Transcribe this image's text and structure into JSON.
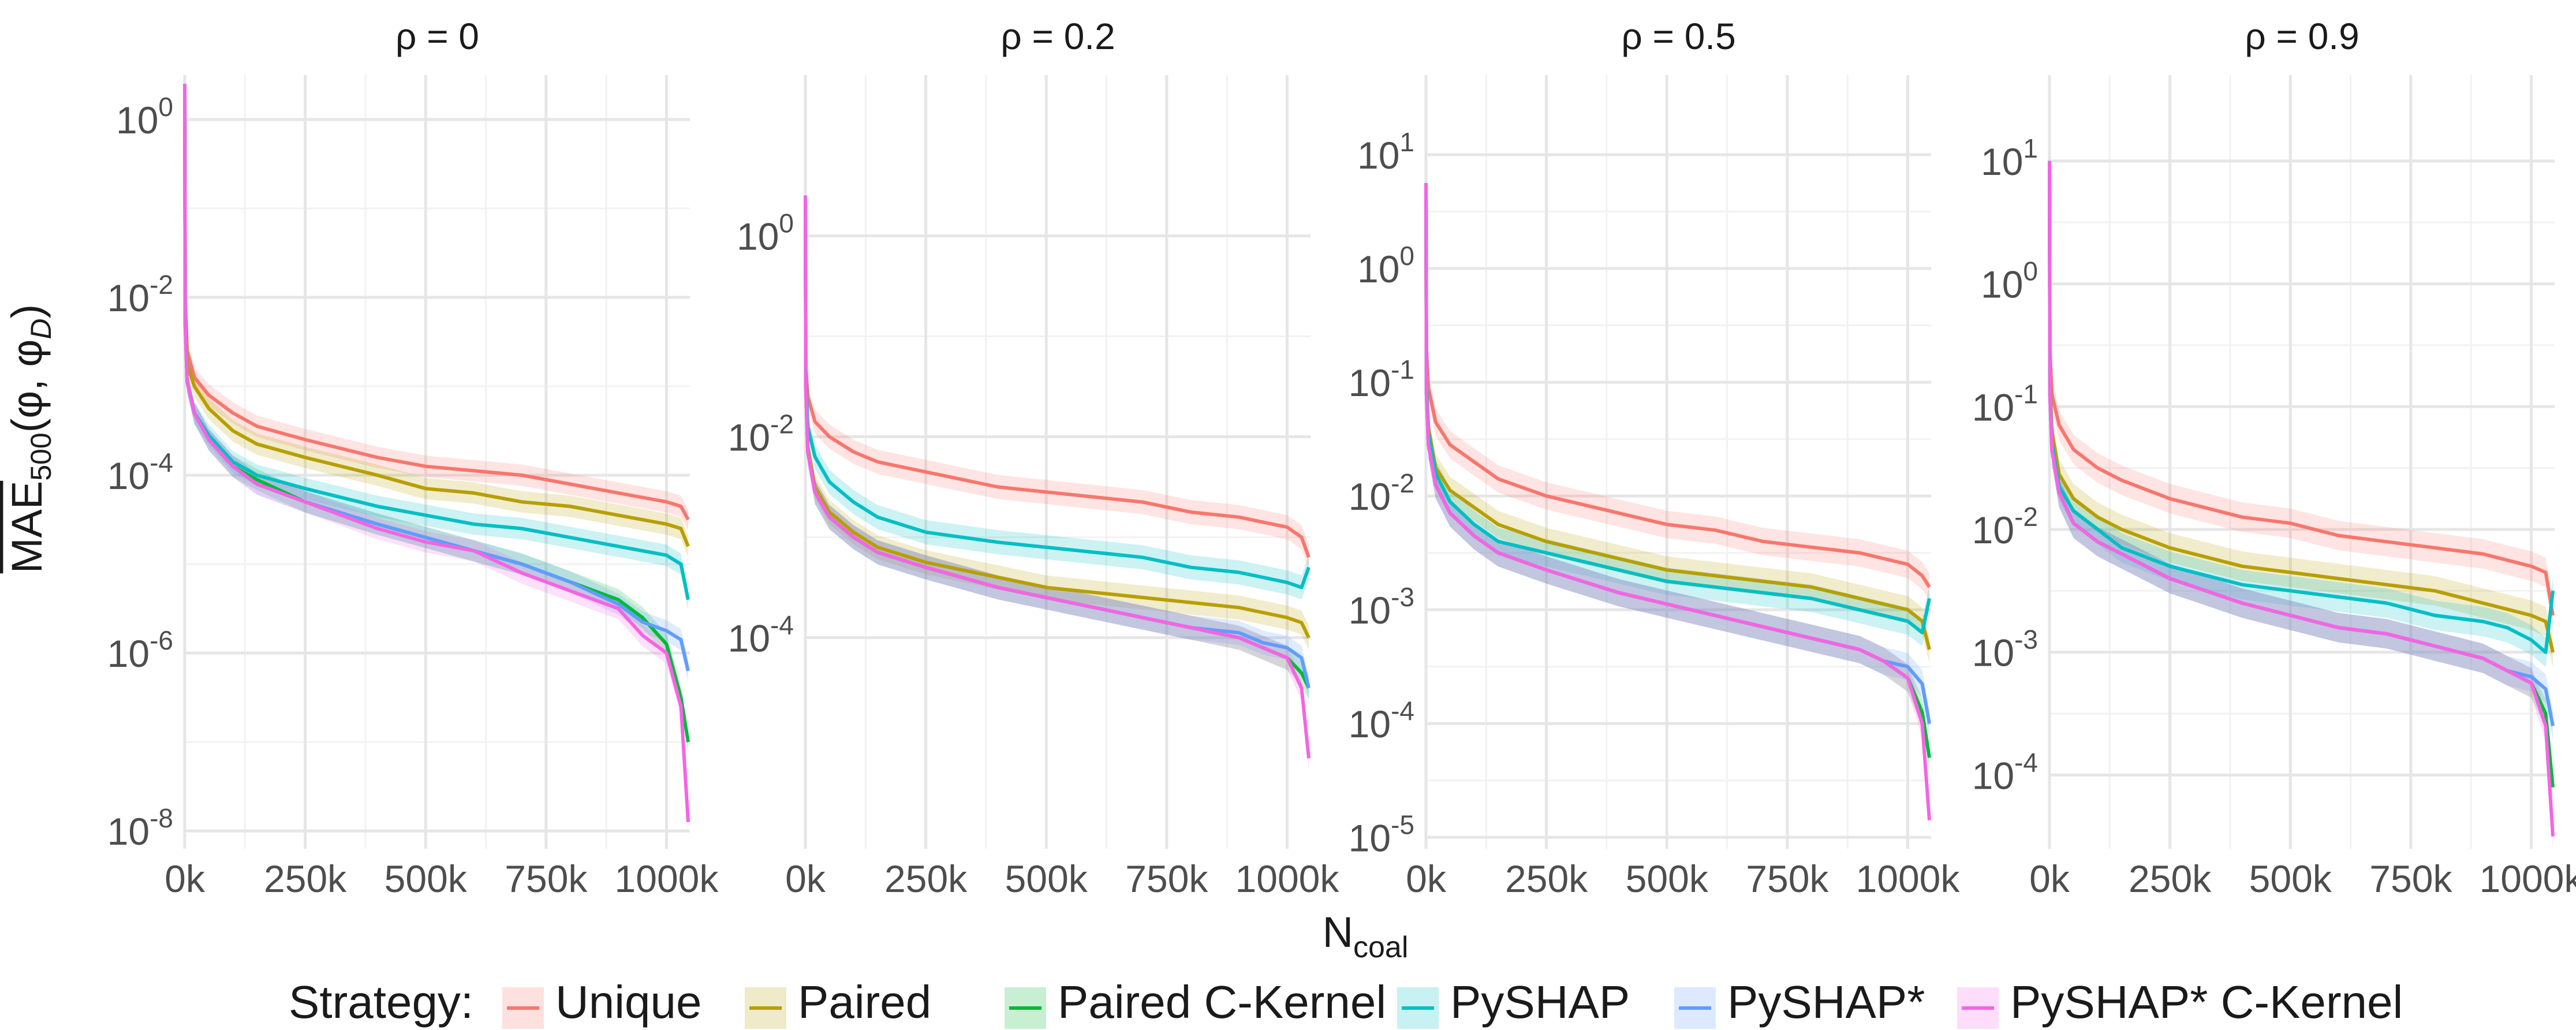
{
  "chart_data": {
    "type": "line",
    "title": "",
    "xlabel": "N",
    "xlabel_sub": "coal",
    "ylabel_parts": {
      "main": "MAE",
      "sub": "500",
      "args": "(φ, φ",
      "args_sub": "D",
      "close": ")"
    },
    "x_ticks": [
      0,
      250000,
      500000,
      750000,
      1000000
    ],
    "x_tick_labels": [
      "0k",
      "250k",
      "500k",
      "750k",
      "1000k"
    ],
    "xlim": [
      0,
      1048576
    ],
    "legend": {
      "title": "Strategy:",
      "entries": [
        "Unique",
        "Paired",
        "Paired C-Kernel",
        "PySHAP",
        "PySHAP*",
        "PySHAP* C-Kernel"
      ],
      "colors": [
        "#F8766D",
        "#B79F00",
        "#00BA38",
        "#00BFC4",
        "#619CFF",
        "#F564E3"
      ]
    },
    "panels": [
      {
        "title": "ρ = 0",
        "ylim_log10": [
          -8.2,
          0.5
        ],
        "y_ticks": [
          0,
          -2,
          -4,
          -6,
          -8
        ],
        "y_tick_labels": [
          {
            "base": "10",
            "exp": "0"
          },
          {
            "base": "10",
            "exp": "-2"
          },
          {
            "base": "10",
            "exp": "-4"
          },
          {
            "base": "10",
            "exp": "-6"
          },
          {
            "base": "10",
            "exp": "-8"
          }
        ],
        "x": [
          0,
          1000,
          5000,
          20000,
          50000,
          100000,
          150000,
          250000,
          400000,
          500000,
          600000,
          700000,
          800000,
          900000,
          950000,
          1000000,
          1030000,
          1045000
        ],
        "series": [
          {
            "name": "Unique",
            "log10": [
              0.4,
              -2.0,
              -2.6,
              -2.9,
              -3.1,
              -3.3,
              -3.45,
              -3.6,
              -3.8,
              -3.9,
              -3.95,
              -4.0,
              -4.1,
              -4.2,
              -4.25,
              -4.3,
              -4.35,
              -4.5
            ]
          },
          {
            "name": "Paired",
            "log10": [
              0.4,
              -2.1,
              -2.75,
              -3.0,
              -3.25,
              -3.5,
              -3.65,
              -3.8,
              -4.0,
              -4.15,
              -4.2,
              -4.3,
              -4.35,
              -4.45,
              -4.5,
              -4.55,
              -4.6,
              -4.8
            ]
          },
          {
            "name": "Paired C-Kernel",
            "log10": [
              0.4,
              -2.3,
              -2.95,
              -3.3,
              -3.6,
              -3.9,
              -4.05,
              -4.3,
              -4.55,
              -4.7,
              -4.85,
              -5.0,
              -5.2,
              -5.4,
              -5.6,
              -5.9,
              -6.5,
              -7.0
            ]
          },
          {
            "name": "PySHAP",
            "log10": [
              0.4,
              -2.2,
              -2.95,
              -3.3,
              -3.55,
              -3.85,
              -4.0,
              -4.15,
              -4.35,
              -4.45,
              -4.55,
              -4.6,
              -4.7,
              -4.8,
              -4.85,
              -4.9,
              -5.0,
              -5.4
            ]
          },
          {
            "name": "PySHAP*",
            "log10": [
              0.4,
              -2.3,
              -2.95,
              -3.3,
              -3.6,
              -3.9,
              -4.1,
              -4.3,
              -4.55,
              -4.7,
              -4.85,
              -5.0,
              -5.2,
              -5.45,
              -5.65,
              -5.75,
              -5.85,
              -6.2
            ]
          },
          {
            "name": "PySHAP* C-Kernel",
            "log10": [
              0.4,
              -2.3,
              -2.95,
              -3.3,
              -3.6,
              -3.9,
              -4.1,
              -4.3,
              -4.6,
              -4.75,
              -4.85,
              -5.1,
              -5.3,
              -5.5,
              -5.8,
              -6.0,
              -6.6,
              -7.9
            ]
          }
        ]
      },
      {
        "title": "ρ = 0.2",
        "ylim_log10": [
          -6.1,
          1.6
        ],
        "y_ticks": [
          0,
          -2,
          -4
        ],
        "y_tick_labels": [
          {
            "base": "10",
            "exp": "0"
          },
          {
            "base": "10",
            "exp": "-2"
          },
          {
            "base": "10",
            "exp": "-4"
          }
        ],
        "x": [
          0,
          1000,
          5000,
          20000,
          50000,
          100000,
          150000,
          250000,
          400000,
          500000,
          600000,
          700000,
          800000,
          900000,
          950000,
          1000000,
          1030000,
          1045000
        ],
        "series": [
          {
            "name": "Unique",
            "log10": [
              0.4,
              -1.3,
              -1.6,
              -1.85,
              -2.0,
              -2.15,
              -2.25,
              -2.35,
              -2.5,
              -2.55,
              -2.6,
              -2.65,
              -2.75,
              -2.8,
              -2.85,
              -2.9,
              -3.0,
              -3.2
            ]
          },
          {
            "name": "Paired",
            "log10": [
              0.4,
              -1.5,
              -2.1,
              -2.5,
              -2.75,
              -2.95,
              -3.1,
              -3.25,
              -3.4,
              -3.5,
              -3.55,
              -3.6,
              -3.65,
              -3.7,
              -3.75,
              -3.8,
              -3.85,
              -4.0
            ]
          },
          {
            "name": "Paired C-Kernel",
            "log10": [
              0.4,
              -1.5,
              -2.15,
              -2.55,
              -2.8,
              -3.0,
              -3.15,
              -3.3,
              -3.5,
              -3.6,
              -3.7,
              -3.8,
              -3.9,
              -4.0,
              -4.1,
              -4.2,
              -4.35,
              -4.5
            ]
          },
          {
            "name": "PySHAP",
            "log10": [
              0.4,
              -1.4,
              -1.9,
              -2.2,
              -2.45,
              -2.65,
              -2.8,
              -2.95,
              -3.05,
              -3.1,
              -3.15,
              -3.2,
              -3.3,
              -3.35,
              -3.4,
              -3.45,
              -3.5,
              -3.3
            ]
          },
          {
            "name": "PySHAP*",
            "log10": [
              0.4,
              -1.5,
              -2.15,
              -2.55,
              -2.8,
              -3.0,
              -3.15,
              -3.3,
              -3.5,
              -3.6,
              -3.7,
              -3.8,
              -3.9,
              -3.95,
              -4.05,
              -4.1,
              -4.2,
              -4.5
            ]
          },
          {
            "name": "PySHAP* C-Kernel",
            "log10": [
              0.4,
              -1.5,
              -2.15,
              -2.55,
              -2.8,
              -3.0,
              -3.15,
              -3.3,
              -3.5,
              -3.6,
              -3.7,
              -3.8,
              -3.9,
              -4.0,
              -4.1,
              -4.2,
              -4.5,
              -5.2
            ]
          }
        ]
      },
      {
        "title": "ρ = 0.5",
        "ylim_log10": [
          -5.1,
          1.7
        ],
        "y_ticks": [
          1,
          0,
          -1,
          -2,
          -3,
          -4,
          -5
        ],
        "y_tick_labels": [
          {
            "base": "10",
            "exp": "1"
          },
          {
            "base": "10",
            "exp": "0"
          },
          {
            "base": "10",
            "exp": "-1"
          },
          {
            "base": "10",
            "exp": "-2"
          },
          {
            "base": "10",
            "exp": "-3"
          },
          {
            "base": "10",
            "exp": "-4"
          },
          {
            "base": "10",
            "exp": "-5"
          }
        ],
        "x": [
          0,
          1000,
          5000,
          20000,
          50000,
          100000,
          150000,
          250000,
          400000,
          500000,
          600000,
          700000,
          800000,
          900000,
          950000,
          1000000,
          1030000,
          1045000
        ],
        "series": [
          {
            "name": "Unique",
            "log10": [
              0.75,
              -0.7,
              -1.05,
              -1.35,
              -1.55,
              -1.7,
              -1.85,
              -2.0,
              -2.15,
              -2.25,
              -2.3,
              -2.4,
              -2.45,
              -2.5,
              -2.55,
              -2.6,
              -2.7,
              -2.8
            ]
          },
          {
            "name": "Paired",
            "log10": [
              0.75,
              -1.0,
              -1.4,
              -1.75,
              -1.95,
              -2.1,
              -2.25,
              -2.4,
              -2.55,
              -2.65,
              -2.7,
              -2.75,
              -2.8,
              -2.9,
              -2.95,
              -3.0,
              -3.1,
              -3.35
            ]
          },
          {
            "name": "Paired C-Kernel",
            "log10": [
              0.75,
              -1.1,
              -1.55,
              -1.9,
              -2.15,
              -2.35,
              -2.5,
              -2.65,
              -2.85,
              -2.95,
              -3.05,
              -3.15,
              -3.25,
              -3.35,
              -3.45,
              -3.6,
              -3.9,
              -4.3
            ]
          },
          {
            "name": "PySHAP",
            "log10": [
              0.75,
              -1.0,
              -1.45,
              -1.8,
              -2.05,
              -2.25,
              -2.4,
              -2.5,
              -2.65,
              -2.75,
              -2.8,
              -2.85,
              -2.9,
              -3.0,
              -3.05,
              -3.1,
              -3.2,
              -2.9
            ]
          },
          {
            "name": "PySHAP*",
            "log10": [
              0.75,
              -1.1,
              -1.55,
              -1.9,
              -2.15,
              -2.35,
              -2.5,
              -2.65,
              -2.85,
              -2.95,
              -3.05,
              -3.15,
              -3.25,
              -3.35,
              -3.45,
              -3.5,
              -3.65,
              -4.0
            ]
          },
          {
            "name": "PySHAP* C-Kernel",
            "log10": [
              0.75,
              -1.1,
              -1.55,
              -1.9,
              -2.15,
              -2.35,
              -2.5,
              -2.65,
              -2.85,
              -2.95,
              -3.05,
              -3.15,
              -3.25,
              -3.35,
              -3.45,
              -3.6,
              -4.0,
              -4.85
            ]
          }
        ]
      },
      {
        "title": "ρ = 0.9",
        "ylim_log10": [
          -4.6,
          1.7
        ],
        "y_ticks": [
          1,
          0,
          -1,
          -2,
          -3,
          -4
        ],
        "y_tick_labels": [
          {
            "base": "10",
            "exp": "1"
          },
          {
            "base": "10",
            "exp": "0"
          },
          {
            "base": "10",
            "exp": "-1"
          },
          {
            "base": "10",
            "exp": "-2"
          },
          {
            "base": "10",
            "exp": "-3"
          },
          {
            "base": "10",
            "exp": "-4"
          }
        ],
        "x": [
          0,
          1000,
          5000,
          20000,
          50000,
          100000,
          150000,
          250000,
          400000,
          500000,
          600000,
          700000,
          800000,
          900000,
          950000,
          1000000,
          1030000,
          1045000
        ],
        "series": [
          {
            "name": "Unique",
            "log10": [
              1.0,
              -0.55,
              -0.9,
              -1.15,
              -1.35,
              -1.5,
              -1.6,
              -1.75,
              -1.9,
              -1.95,
              -2.05,
              -2.1,
              -2.15,
              -2.2,
              -2.25,
              -2.3,
              -2.35,
              -2.7
            ]
          },
          {
            "name": "Paired",
            "log10": [
              1.0,
              -0.8,
              -1.2,
              -1.55,
              -1.75,
              -1.9,
              -2.0,
              -2.15,
              -2.3,
              -2.35,
              -2.4,
              -2.45,
              -2.5,
              -2.6,
              -2.65,
              -2.7,
              -2.75,
              -3.0
            ]
          },
          {
            "name": "Paired C-Kernel",
            "log10": [
              1.0,
              -0.9,
              -1.35,
              -1.7,
              -1.95,
              -2.1,
              -2.2,
              -2.4,
              -2.6,
              -2.7,
              -2.8,
              -2.85,
              -2.95,
              -3.05,
              -3.15,
              -3.25,
              -3.5,
              -4.1
            ]
          },
          {
            "name": "PySHAP",
            "log10": [
              1.0,
              -0.85,
              -1.3,
              -1.65,
              -1.85,
              -2.0,
              -2.15,
              -2.3,
              -2.45,
              -2.5,
              -2.55,
              -2.6,
              -2.7,
              -2.75,
              -2.8,
              -2.9,
              -3.0,
              -2.5
            ]
          },
          {
            "name": "PySHAP*",
            "log10": [
              1.0,
              -0.9,
              -1.35,
              -1.7,
              -1.95,
              -2.1,
              -2.2,
              -2.4,
              -2.6,
              -2.7,
              -2.8,
              -2.85,
              -2.95,
              -3.05,
              -3.15,
              -3.2,
              -3.3,
              -3.6
            ]
          },
          {
            "name": "PySHAP* C-Kernel",
            "log10": [
              1.0,
              -0.9,
              -1.35,
              -1.7,
              -1.95,
              -2.1,
              -2.2,
              -2.4,
              -2.6,
              -2.7,
              -2.8,
              -2.85,
              -2.95,
              -3.05,
              -3.15,
              -3.25,
              -3.6,
              -4.5
            ]
          }
        ]
      }
    ]
  }
}
